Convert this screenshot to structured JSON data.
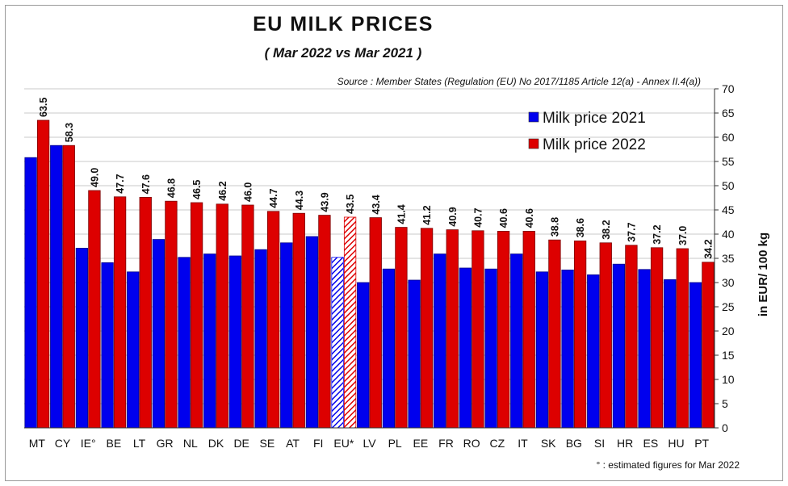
{
  "title": "EU  MILK  PRICES",
  "subtitle": "( Mar 2022   vs   Mar 2021 )",
  "source": "Source : Member States (Regulation (EU) No 2017/1185 Article 12(a) - Annex II.4(a))",
  "footnote": "° : estimated figures for Mar 2022",
  "colors": {
    "series_2021": "#0000ee",
    "series_2022": "#dd0000",
    "grid": "#c8c8c8"
  },
  "chart_data": {
    "type": "bar",
    "title": "EU  MILK  PRICES",
    "subtitle": "( Mar 2022   vs   Mar 2021 )",
    "ylabel": "in EUR/ 100 kg",
    "ylim": [
      0,
      70
    ],
    "yticks": [
      0,
      5,
      10,
      15,
      20,
      25,
      30,
      35,
      40,
      45,
      50,
      55,
      60,
      65,
      70
    ],
    "y_axis_side": "right",
    "grid": true,
    "legend": "top-right",
    "categories": [
      "MT",
      "CY",
      "IE°",
      "BE",
      "LT",
      "GR",
      "NL",
      "DK",
      "DE",
      "SE",
      "AT",
      "FI",
      "EU*",
      "LV",
      "PL",
      "EE",
      "FR",
      "RO",
      "CZ",
      "IT",
      "SK",
      "BG",
      "SI",
      "HR",
      "ES",
      "HU",
      "PT"
    ],
    "highlighted_category": "EU*",
    "series": [
      {
        "name": "Milk price 2021",
        "values": [
          55.8,
          58.3,
          37.1,
          34.1,
          32.2,
          38.9,
          35.2,
          35.9,
          35.5,
          36.8,
          38.2,
          39.5,
          35.2,
          30.0,
          32.8,
          30.5,
          35.9,
          33.0,
          32.8,
          35.9,
          32.2,
          32.6,
          31.6,
          33.8,
          32.7,
          30.6,
          30.0
        ]
      },
      {
        "name": "Milk price 2022",
        "values": [
          63.5,
          58.3,
          49.0,
          47.7,
          47.6,
          46.8,
          46.5,
          46.2,
          46.0,
          44.7,
          44.3,
          43.9,
          43.5,
          43.4,
          41.4,
          41.2,
          40.9,
          40.7,
          40.6,
          40.6,
          38.8,
          38.6,
          38.2,
          37.7,
          37.2,
          37.0,
          34.2
        ]
      }
    ],
    "data_labels_2022": [
      "63.5",
      "58.3",
      "49.0",
      "47.7",
      "47.6",
      "46.8",
      "46.5",
      "46.2",
      "46.0",
      "44.7",
      "44.3",
      "43.9",
      "43.5",
      "43.4",
      "41.4",
      "41.2",
      "40.9",
      "40.7",
      "40.6",
      "40.6",
      "38.8",
      "38.6",
      "38.2",
      "37.7",
      "37.2",
      "37.0",
      "34.2"
    ]
  }
}
